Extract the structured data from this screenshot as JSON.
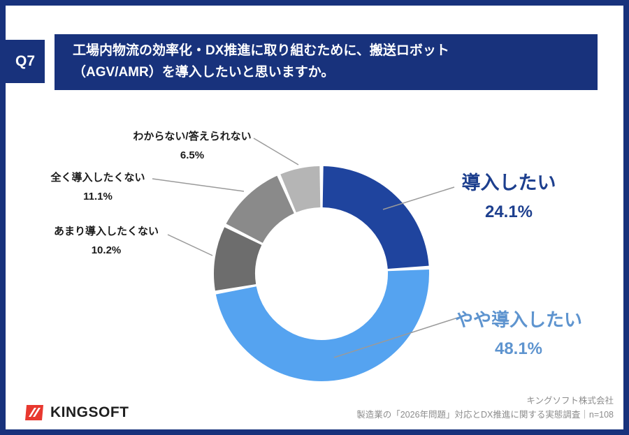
{
  "header": {
    "q_label": "Q7",
    "title_line1": "工場内物流の効率化・DX推進に取り組むために、搬送ロボット",
    "title_line2": "（AGV/AMR）を導入したいと思いますか。"
  },
  "chart_data": {
    "type": "pie",
    "donut": true,
    "title": "工場内物流の効率化・DX推進に取り組むために、搬送ロボット（AGV/AMR）を導入したいと思いますか。",
    "unit": "%",
    "start_angle_deg": 0,
    "direction": "clockwise",
    "legend_position": "callouts",
    "segments": [
      {
        "label": "導入したい",
        "value": 24.1,
        "color": "#1f449e"
      },
      {
        "label": "やや導入したい",
        "value": 48.1,
        "color": "#55a3f0"
      },
      {
        "label": "あまり導入したくない",
        "value": 10.2,
        "color": "#6d6d6d"
      },
      {
        "label": "全く導入したくない",
        "value": 11.1,
        "color": "#8a8a8a"
      },
      {
        "label": "わからない/答えられない",
        "value": 6.5,
        "color": "#b5b5b5"
      }
    ]
  },
  "callouts": {
    "adopt": "24.1%",
    "somewhat": "48.1%",
    "not_really": "10.2%",
    "not_at_all": "11.1%",
    "unknown": "6.5%"
  },
  "colors": {
    "frame_navy": "#18327c",
    "adopt_text": "#1d3f8e",
    "somewhat_text": "#5e94cf",
    "logo_red": "#e8382f"
  },
  "footer": {
    "logo_text": "KINGSOFT",
    "company": "キングソフト株式会社",
    "survey": "製造業の「2026年問題」対応とDX推進に関する実態調査｜n=108"
  }
}
